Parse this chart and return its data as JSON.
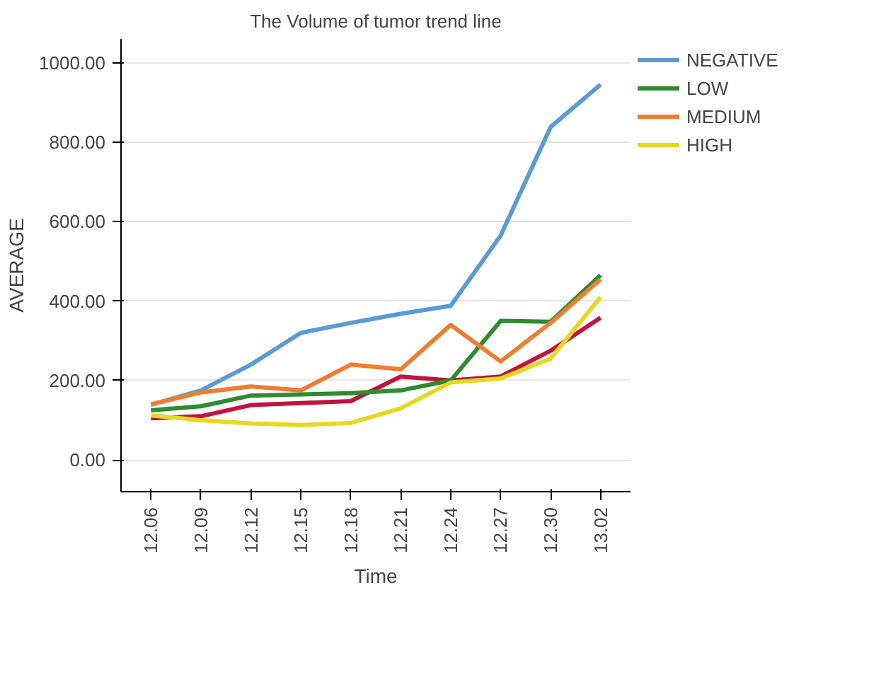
{
  "chart_data": {
    "type": "line",
    "title": "The Volume of tumor trend line",
    "xlabel": "Time",
    "ylabel": "AVERAGE",
    "categories": [
      "12.06",
      "12.09",
      "12.12",
      "12.15",
      "12.18",
      "12.21",
      "12.24",
      "12.27",
      "12.30",
      "13.02"
    ],
    "series": [
      {
        "name": "NEGATIVE",
        "color": "#5b9bd5",
        "values": [
          139,
          175,
          240,
          320,
          345,
          368,
          388,
          565,
          838,
          945
        ]
      },
      {
        "color": "#c0143c",
        "values": [
          105,
          110,
          138,
          143,
          148,
          210,
          200,
          210,
          275,
          358
        ]
      },
      {
        "name": "LOW",
        "color": "#2e8b2e",
        "values": [
          125,
          135,
          162,
          165,
          168,
          175,
          200,
          350,
          348,
          465
        ]
      },
      {
        "name": "MEDIUM",
        "color": "#ed7d31",
        "values": [
          140,
          170,
          185,
          175,
          240,
          228,
          340,
          248,
          345,
          455
        ]
      },
      {
        "name": "HIGH",
        "color": "#e5d820",
        "values": [
          112,
          100,
          92,
          88,
          93,
          130,
          195,
          205,
          255,
          410
        ]
      }
    ],
    "ylim": [
      -80,
      1060
    ],
    "yticks": [
      {
        "value": 0,
        "label": "0.00"
      },
      {
        "value": 200,
        "label": "200.00"
      },
      {
        "value": 400,
        "label": "400.00"
      },
      {
        "value": 600,
        "label": "600.00"
      },
      {
        "value": 800,
        "label": "800.00"
      },
      {
        "value": 1000,
        "label": "1000.00"
      }
    ],
    "grid": "y",
    "legend": "right",
    "marker": "none",
    "line_style": "solid"
  }
}
